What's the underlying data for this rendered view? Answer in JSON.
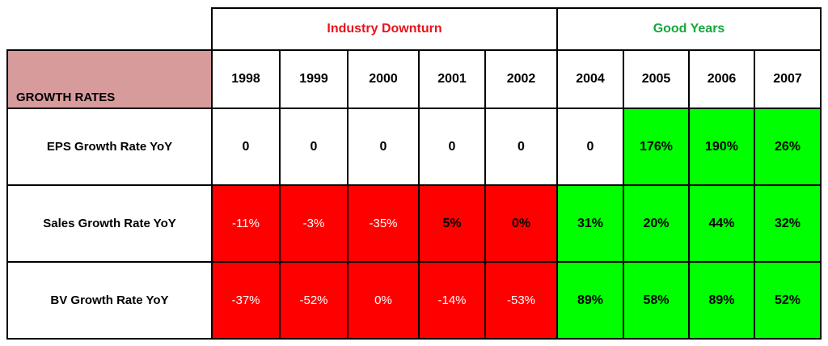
{
  "groups": {
    "downturn_label": "Industry Downturn",
    "good_label": "Good Years"
  },
  "corner_label": "GROWTH RATES",
  "years": [
    "1998",
    "1999",
    "2000",
    "2001",
    "2002",
    "2004",
    "2005",
    "2006",
    "2007"
  ],
  "rows": [
    {
      "label": "EPS Growth Rate YoY",
      "values": [
        "0",
        "0",
        "0",
        "0",
        "0",
        "0",
        "176%",
        "190%",
        "26%"
      ]
    },
    {
      "label": "Sales Growth Rate YoY",
      "values": [
        "-11%",
        "-3%",
        "-35%",
        "5%",
        "0%",
        "31%",
        "20%",
        "44%",
        "32%"
      ]
    },
    {
      "label": "BV Growth Rate YoY",
      "values": [
        "-37%",
        "-52%",
        "0%",
        "-14%",
        "-53%",
        "89%",
        "58%",
        "89%",
        "52%"
      ]
    }
  ],
  "colors": {
    "downturn_header": "#e8141c",
    "good_header": "#14a83c",
    "negative_fill": "#ff0000",
    "positive_fill": "#00ff00",
    "label_fill": "#d79b9b"
  }
}
